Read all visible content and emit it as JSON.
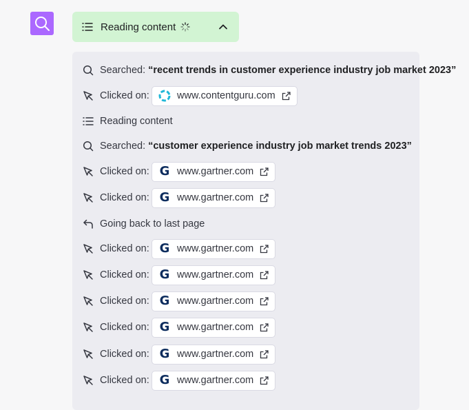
{
  "header": {
    "status_text": "Reading content",
    "colors": {
      "avatar": "#ab68ff",
      "status_bg": "#d2f4d3",
      "panel_bg": "#ececf1"
    }
  },
  "steps": [
    {
      "type": "search",
      "label": "Searched:",
      "query": "“recent trends in customer experience industry job market 2023”"
    },
    {
      "type": "click",
      "label": "Clicked on:",
      "domain": "www.contentguru.com",
      "favicon": "contentguru-icon"
    },
    {
      "type": "read",
      "label": "Reading content"
    },
    {
      "type": "search",
      "label": "Searched:",
      "query": "“customer experience industry job market trends 2023”"
    },
    {
      "type": "click",
      "label": "Clicked on:",
      "domain": "www.gartner.com",
      "favicon": "gartner-icon"
    },
    {
      "type": "click",
      "label": "Clicked on:",
      "domain": "www.gartner.com",
      "favicon": "gartner-icon"
    },
    {
      "type": "back",
      "label": "Going back to last page"
    },
    {
      "type": "click",
      "label": "Clicked on:",
      "domain": "www.gartner.com",
      "favicon": "gartner-icon"
    },
    {
      "type": "click",
      "label": "Clicked on:",
      "domain": "www.gartner.com",
      "favicon": "gartner-icon"
    },
    {
      "type": "click",
      "label": "Clicked on:",
      "domain": "www.gartner.com",
      "favicon": "gartner-icon"
    },
    {
      "type": "click",
      "label": "Clicked on:",
      "domain": "www.gartner.com",
      "favicon": "gartner-icon"
    },
    {
      "type": "click",
      "label": "Clicked on:",
      "domain": "www.gartner.com",
      "favicon": "gartner-icon"
    },
    {
      "type": "click",
      "label": "Clicked on:",
      "domain": "www.gartner.com",
      "favicon": "gartner-icon"
    }
  ]
}
